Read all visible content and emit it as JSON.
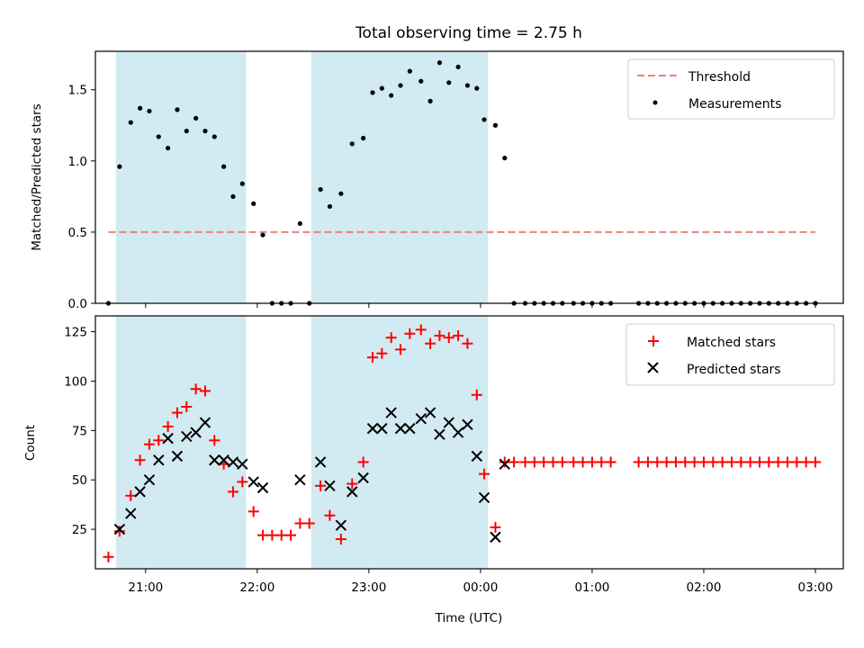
{
  "chart_data": [
    {
      "type": "scatter",
      "title": "Total observing time = 2.75 h",
      "xlabel": "",
      "ylabel": "Matched/Predicted stars",
      "xlim": [
        20.55,
        3.25
      ],
      "ylim": [
        0,
        1.77
      ],
      "yticks": [
        0,
        0.5,
        1.0,
        1.5
      ],
      "ytick_labels": [
        "0.0",
        "0.5",
        "1.0",
        "1.5"
      ],
      "shaded_intervals": [
        [
          "20:44",
          "21:54"
        ],
        [
          "22:29",
          "00:04"
        ]
      ],
      "shade_color": "#add8e6",
      "legend": {
        "placement": "top-right",
        "entries": [
          "Threshold",
          "Measurements"
        ]
      },
      "series": [
        {
          "name": "Threshold",
          "style": "dashed-line",
          "color": "#f08080",
          "x": [
            "20:40",
            "03:00"
          ],
          "y": [
            0.5,
            0.5
          ]
        },
        {
          "name": "Measurements",
          "style": "dot",
          "color": "#000000",
          "x": [
            "20:40",
            "20:46",
            "20:52",
            "20:57",
            "21:02",
            "21:07",
            "21:12",
            "21:17",
            "21:22",
            "21:27",
            "21:32",
            "21:37",
            "21:42",
            "21:47",
            "21:52",
            "21:58",
            "22:03",
            "22:08",
            "22:13",
            "22:18",
            "22:23",
            "22:28",
            "22:34",
            "22:39",
            "22:45",
            "22:51",
            "22:57",
            "23:02",
            "23:07",
            "23:12",
            "23:17",
            "23:22",
            "23:28",
            "23:33",
            "23:38",
            "23:43",
            "23:48",
            "23:53",
            "23:58",
            "00:02",
            "00:08",
            "00:13",
            "00:18",
            "00:24",
            "00:29",
            "00:34",
            "00:39",
            "00:44",
            "00:50",
            "00:55",
            "01:00",
            "01:05",
            "01:10",
            "01:25",
            "01:30",
            "01:35",
            "01:40",
            "01:45",
            "01:50",
            "01:55",
            "02:00",
            "02:05",
            "02:10",
            "02:15",
            "02:20",
            "02:25",
            "02:30",
            "02:35",
            "02:40",
            "02:45",
            "02:50",
            "02:55",
            "03:00"
          ],
          "y": [
            0.0,
            0.96,
            1.27,
            1.37,
            1.35,
            1.17,
            1.09,
            1.36,
            1.21,
            1.3,
            1.21,
            1.17,
            0.96,
            0.75,
            0.84,
            0.7,
            0.48,
            0.0,
            0.0,
            0.0,
            0.56,
            0.0,
            0.8,
            0.68,
            0.77,
            1.12,
            1.16,
            1.48,
            1.51,
            1.46,
            1.53,
            1.63,
            1.56,
            1.42,
            1.69,
            1.55,
            1.66,
            1.53,
            1.51,
            1.29,
            1.25,
            1.02,
            0.0,
            0.0,
            0.0,
            0.0,
            0.0,
            0.0,
            0.0,
            0.0,
            0.0,
            0.0,
            0.0,
            0.0,
            0.0,
            0.0,
            0.0,
            0.0,
            0.0,
            0.0,
            0.0,
            0.0,
            0.0,
            0.0,
            0.0,
            0.0,
            0.0,
            0.0,
            0.0,
            0.0,
            0.0,
            0.0,
            0.0
          ]
        }
      ]
    },
    {
      "type": "scatter",
      "title": "",
      "xlabel": "Time (UTC)",
      "ylabel": "Count",
      "xlim": [
        20.55,
        3.25
      ],
      "ylim": [
        5,
        133
      ],
      "yticks": [
        25,
        50,
        75,
        100,
        125
      ],
      "ytick_labels": [
        "25",
        "50",
        "75",
        "100",
        "125"
      ],
      "xticks": [
        "21:00",
        "22:00",
        "23:00",
        "00:00",
        "01:00",
        "02:00",
        "03:00"
      ],
      "shaded_intervals": [
        [
          "20:44",
          "21:54"
        ],
        [
          "22:29",
          "00:04"
        ]
      ],
      "shade_color": "#add8e6",
      "legend": {
        "placement": "top-right",
        "entries": [
          "Matched stars",
          "Predicted stars"
        ]
      },
      "series": [
        {
          "name": "Matched stars",
          "marker": "plus",
          "color": "#ff0000",
          "x": [
            "20:40",
            "20:46",
            "20:52",
            "20:57",
            "21:02",
            "21:07",
            "21:12",
            "21:17",
            "21:22",
            "21:27",
            "21:32",
            "21:37",
            "21:42",
            "21:47",
            "21:52",
            "21:58",
            "22:03",
            "22:08",
            "22:13",
            "22:18",
            "22:23",
            "22:28",
            "22:34",
            "22:39",
            "22:45",
            "22:51",
            "22:57",
            "23:02",
            "23:07",
            "23:12",
            "23:17",
            "23:22",
            "23:28",
            "23:33",
            "23:38",
            "23:43",
            "23:48",
            "23:53",
            "23:58",
            "00:02",
            "00:08",
            "00:13",
            "00:18",
            "00:24",
            "00:29",
            "00:34",
            "00:39",
            "00:44",
            "00:50",
            "00:55",
            "01:00",
            "01:05",
            "01:10",
            "01:25",
            "01:30",
            "01:35",
            "01:40",
            "01:45",
            "01:50",
            "01:55",
            "02:00",
            "02:05",
            "02:10",
            "02:15",
            "02:20",
            "02:25",
            "02:30",
            "02:35",
            "02:40",
            "02:45",
            "02:50",
            "02:55",
            "03:00"
          ],
          "y": [
            11,
            24,
            42,
            60,
            68,
            70,
            77,
            84,
            87,
            96,
            95,
            70,
            58,
            44,
            49,
            34,
            22,
            22,
            22,
            22,
            28,
            28,
            47,
            32,
            20,
            48,
            59,
            112,
            114,
            122,
            116,
            124,
            126,
            119,
            123,
            122,
            123,
            119,
            93,
            53,
            26,
            59,
            59,
            59,
            59,
            59,
            59,
            59,
            59,
            59,
            59,
            59,
            59,
            59,
            59,
            59,
            59,
            59,
            59,
            59,
            59,
            59,
            59,
            59,
            59,
            59,
            59,
            59,
            59,
            59,
            59,
            59,
            59
          ]
        },
        {
          "name": "Predicted stars",
          "marker": "x",
          "color": "#000000",
          "x": [
            "20:46",
            "20:52",
            "20:57",
            "21:02",
            "21:07",
            "21:12",
            "21:17",
            "21:22",
            "21:27",
            "21:32",
            "21:37",
            "21:42",
            "21:47",
            "21:52",
            "21:58",
            "22:03",
            "22:23",
            "22:34",
            "22:39",
            "22:45",
            "22:51",
            "22:57",
            "23:02",
            "23:07",
            "23:12",
            "23:17",
            "23:22",
            "23:28",
            "23:33",
            "23:38",
            "23:43",
            "23:48",
            "23:53",
            "23:58",
            "00:02",
            "00:08",
            "00:13"
          ],
          "y": [
            25,
            33,
            44,
            50,
            60,
            71,
            62,
            72,
            74,
            79,
            60,
            60,
            59,
            58,
            49,
            46,
            50,
            59,
            47,
            27,
            44,
            51,
            76,
            76,
            84,
            76,
            76,
            81,
            84,
            73,
            79,
            74,
            78,
            62,
            41,
            21,
            58
          ]
        }
      ]
    }
  ]
}
